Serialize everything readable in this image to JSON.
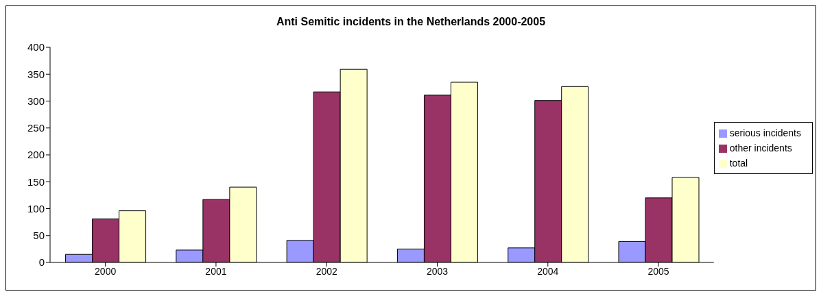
{
  "chart_data": {
    "type": "bar",
    "title": "Anti Semitic incidents in the Netherlands 2000-2005",
    "categories": [
      "2000",
      "2001",
      "2002",
      "2003",
      "2004",
      "2005"
    ],
    "series": [
      {
        "name": "serious incidents",
        "color": "#9999ff",
        "values": [
          15,
          23,
          41,
          25,
          27,
          39
        ]
      },
      {
        "name": "other incidents",
        "color": "#993366",
        "values": [
          81,
          117,
          317,
          311,
          301,
          120
        ]
      },
      {
        "name": "total",
        "color": "#ffffcc",
        "values": [
          96,
          140,
          359,
          335,
          327,
          158
        ]
      }
    ],
    "ylim": [
      0,
      400
    ],
    "yticks": [
      0,
      50,
      100,
      150,
      200,
      250,
      300,
      350,
      400
    ],
    "grid": false,
    "legend": "right"
  }
}
